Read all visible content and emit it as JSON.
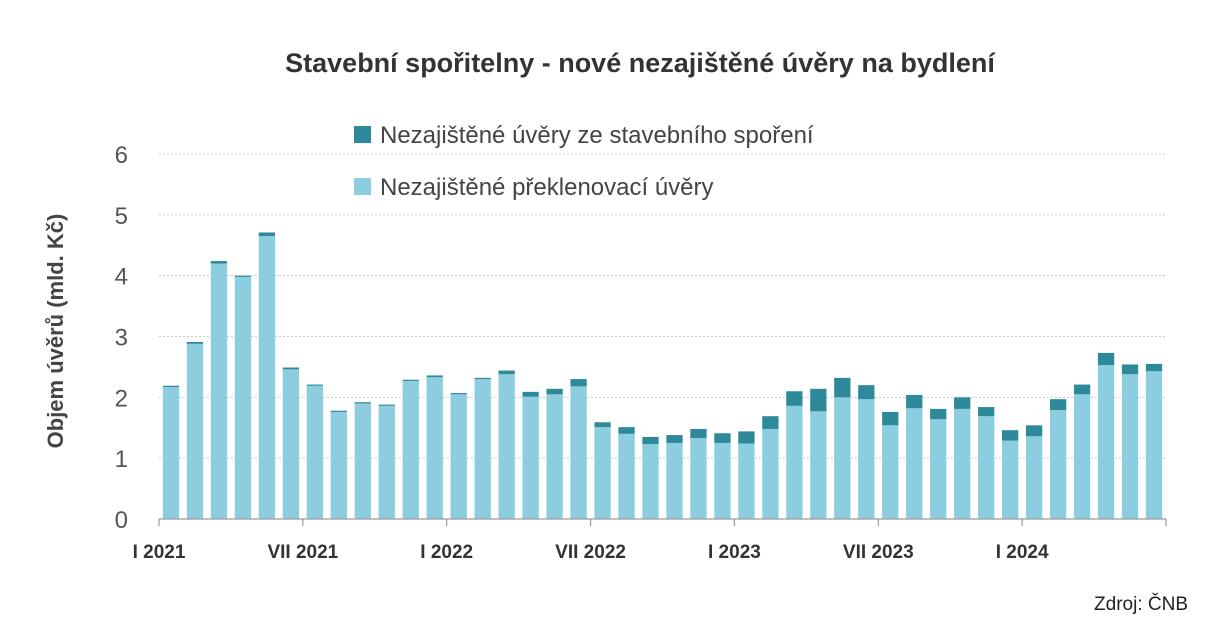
{
  "chart_data": {
    "type": "bar",
    "stacked": true,
    "title": "Stavební spořitelny - nové nezajištěné úvěry na bydlení",
    "ylabel": "Objem úvěrů (mld. Kč)",
    "xlabel": "",
    "ylim": [
      0,
      6
    ],
    "yticks": [
      "0",
      "1",
      "2",
      "3",
      "4",
      "5",
      "6"
    ],
    "grid": true,
    "legend_position": "top-center",
    "x_tick_labels": [
      {
        "index": 0,
        "label": "I 2021"
      },
      {
        "index": 6,
        "label": "VII 2021"
      },
      {
        "index": 12,
        "label": "I 2022"
      },
      {
        "index": 18,
        "label": "VII 2022"
      },
      {
        "index": 24,
        "label": "I 2023"
      },
      {
        "index": 30,
        "label": "VII 2023"
      },
      {
        "index": 36,
        "label": "I 2024"
      }
    ],
    "categories": [
      "I 2021",
      "II 2021",
      "III 2021",
      "IV 2021",
      "V 2021",
      "VI 2021",
      "VII 2021",
      "VIII 2021",
      "IX 2021",
      "X 2021",
      "XI 2021",
      "XII 2021",
      "I 2022",
      "II 2022",
      "III 2022",
      "IV 2022",
      "V 2022",
      "VI 2022",
      "VII 2022",
      "VIII 2022",
      "IX 2022",
      "X 2022",
      "XI 2022",
      "XII 2022",
      "I 2023",
      "II 2023",
      "III 2023",
      "IV 2023",
      "V 2023",
      "VI 2023",
      "VII 2023",
      "VIII 2023",
      "IX 2023",
      "X 2023",
      "XI 2023",
      "XII 2023",
      "I 2024",
      "II 2024",
      "III 2024",
      "IV 2024",
      "V 2024",
      "VI 2024"
    ],
    "series": [
      {
        "name": "Nezajištěné překlenovací úvěry",
        "color": "#8ccde0",
        "values": [
          2.17,
          2.88,
          4.2,
          3.98,
          4.65,
          2.46,
          2.19,
          1.76,
          1.9,
          1.86,
          2.27,
          2.33,
          2.05,
          2.3,
          2.38,
          2.01,
          2.05,
          2.18,
          1.51,
          1.4,
          1.23,
          1.25,
          1.33,
          1.25,
          1.24,
          1.48,
          1.86,
          1.77,
          2.0,
          1.97,
          1.54,
          1.82,
          1.64,
          1.81,
          1.69,
          1.29,
          1.36,
          1.79,
          2.05,
          2.53,
          2.38,
          2.43
        ]
      },
      {
        "name": "Nezajištěné úvěry ze stavebního spoření",
        "color": "#2e8a9a",
        "values": [
          0.02,
          0.03,
          0.04,
          0.02,
          0.06,
          0.03,
          0.02,
          0.02,
          0.02,
          0.02,
          0.02,
          0.03,
          0.02,
          0.02,
          0.06,
          0.08,
          0.09,
          0.12,
          0.08,
          0.11,
          0.12,
          0.13,
          0.15,
          0.16,
          0.2,
          0.21,
          0.24,
          0.37,
          0.32,
          0.23,
          0.22,
          0.22,
          0.17,
          0.19,
          0.15,
          0.17,
          0.18,
          0.18,
          0.16,
          0.2,
          0.16,
          0.12
        ]
      }
    ]
  },
  "source_text": "Zdroj: ČNB"
}
